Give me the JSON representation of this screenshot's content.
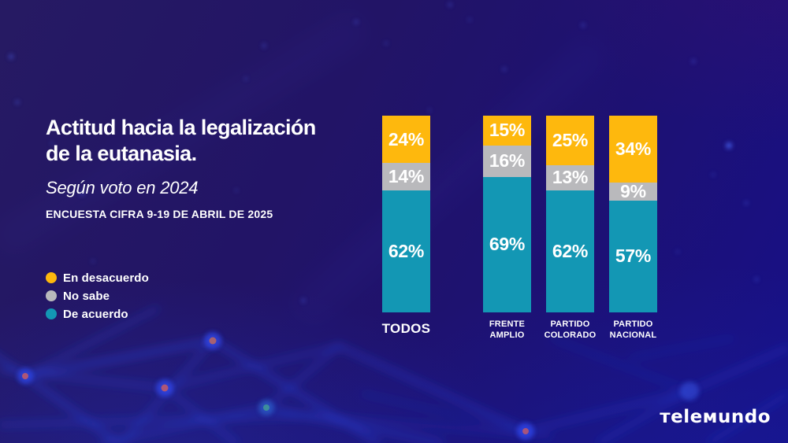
{
  "header": {
    "title_line1": "Actitud hacia la legalización",
    "title_line2": "de la eutanasia.",
    "subtitle": "Según voto en 2024",
    "source": "ENCUESTA CIFRA 9-19 DE ABRIL DE 2025"
  },
  "legend": {
    "items": [
      {
        "label": "En desacuerdo",
        "color": "#feb80d"
      },
      {
        "label": "No sabe",
        "color": "#b9b9bc"
      },
      {
        "label": "De acuerdo",
        "color": "#1397b4"
      }
    ]
  },
  "chart_data": {
    "type": "bar",
    "stacked": true,
    "title": "Actitud hacia la legalización de la eutanasia.",
    "subtitle": "Según voto en 2024",
    "source": "ENCUESTA CIFRA 9-19 DE ABRIL DE 2025",
    "categories": [
      "TODOS",
      "FRENTE AMPLIO",
      "PARTIDO COLORADO",
      "PARTIDO NACIONAL"
    ],
    "series_top_to_bottom": [
      {
        "name": "En desacuerdo",
        "color": "#feb80d",
        "values": [
          24,
          15,
          25,
          34
        ]
      },
      {
        "name": "No sabe",
        "color": "#b9b9bc",
        "values": [
          14,
          16,
          13,
          9
        ]
      },
      {
        "name": "De acuerdo",
        "color": "#1397b4",
        "values": [
          62,
          69,
          62,
          57
        ]
      }
    ],
    "value_suffix": "%",
    "ylim": [
      0,
      100
    ],
    "grid": false,
    "legend_position": "left"
  },
  "branding": {
    "brand": "Telemundo",
    "wordmark": "тeleмundo"
  }
}
